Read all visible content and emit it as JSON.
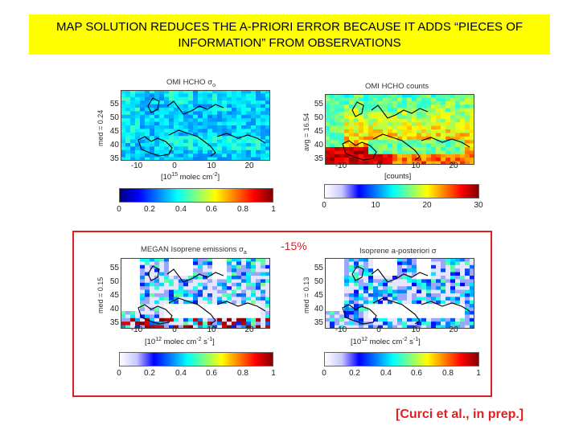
{
  "slide": {
    "title_line1": "MAP SOLUTION REDUCES THE A-PRIORI ERROR BECAUSE IT ADDS “PIECES OF",
    "title_line2": "INFORMATION” FROM OBSERVATIONS",
    "change_label": "-15%",
    "citation": "[Curci et al., in prep.]"
  },
  "panels": [
    {
      "title": "OMI HCHO σ",
      "title_sub": "o",
      "side_label": "med = 0.24",
      "yticks": [
        "55",
        "50",
        "45",
        "40",
        "35"
      ],
      "xticks": [
        "-10",
        "0",
        "10",
        "20"
      ],
      "unit_pre": "[10",
      "unit_exp": "15",
      "unit_post": " molec cm",
      "unit_exp2": "-2",
      "unit_end": "]",
      "cbar_ticks": [
        "0",
        "0.2",
        "0.4",
        "0.6",
        "0.8",
        "1"
      ],
      "cbar_style": "jet"
    },
    {
      "title": "OMI HCHO counts",
      "title_sub": "",
      "side_label": "avg = 16.54",
      "yticks": [
        "55",
        "50",
        "45",
        "40",
        "35"
      ],
      "xticks": [
        "-10",
        "0",
        "10",
        "20"
      ],
      "unit_pre": "[counts]",
      "unit_exp": "",
      "unit_post": "",
      "unit_exp2": "",
      "unit_end": "",
      "cbar_ticks": [
        "0",
        "10",
        "20",
        "30"
      ],
      "cbar_style": "jet-white"
    },
    {
      "title": "MEGAN Isoprene emissions σ",
      "title_sub": "a",
      "side_label": "med = 0.15",
      "yticks": [
        "55",
        "50",
        "45",
        "40",
        "35"
      ],
      "xticks": [
        "-10",
        "0",
        "10",
        "20"
      ],
      "unit_pre": "[10",
      "unit_exp": "12",
      "unit_post": " molec cm",
      "unit_exp2": "-2",
      "unit_end": " s",
      "unit_exp3": "-1",
      "unit_close": "]",
      "cbar_ticks": [
        "0",
        "0.2",
        "0.4",
        "0.6",
        "0.8",
        "1"
      ],
      "cbar_style": "jet-white"
    },
    {
      "title": "Isoprene a-posteriori σ",
      "title_sub": "",
      "side_label": "med = 0.13",
      "yticks": [
        "55",
        "50",
        "45",
        "40",
        "35"
      ],
      "xticks": [
        "-10",
        "0",
        "10",
        "20"
      ],
      "unit_pre": "[10",
      "unit_exp": "12",
      "unit_post": " molec cm",
      "unit_exp2": "-2",
      "unit_end": " s",
      "unit_exp3": "-1",
      "unit_close": "]",
      "cbar_ticks": [
        "0",
        "0.2",
        "0.4",
        "0.6",
        "0.8",
        "1"
      ],
      "cbar_style": "jet-white"
    }
  ],
  "colors": {
    "title_bg": "#ffff00",
    "accent_red": "#e02020"
  }
}
